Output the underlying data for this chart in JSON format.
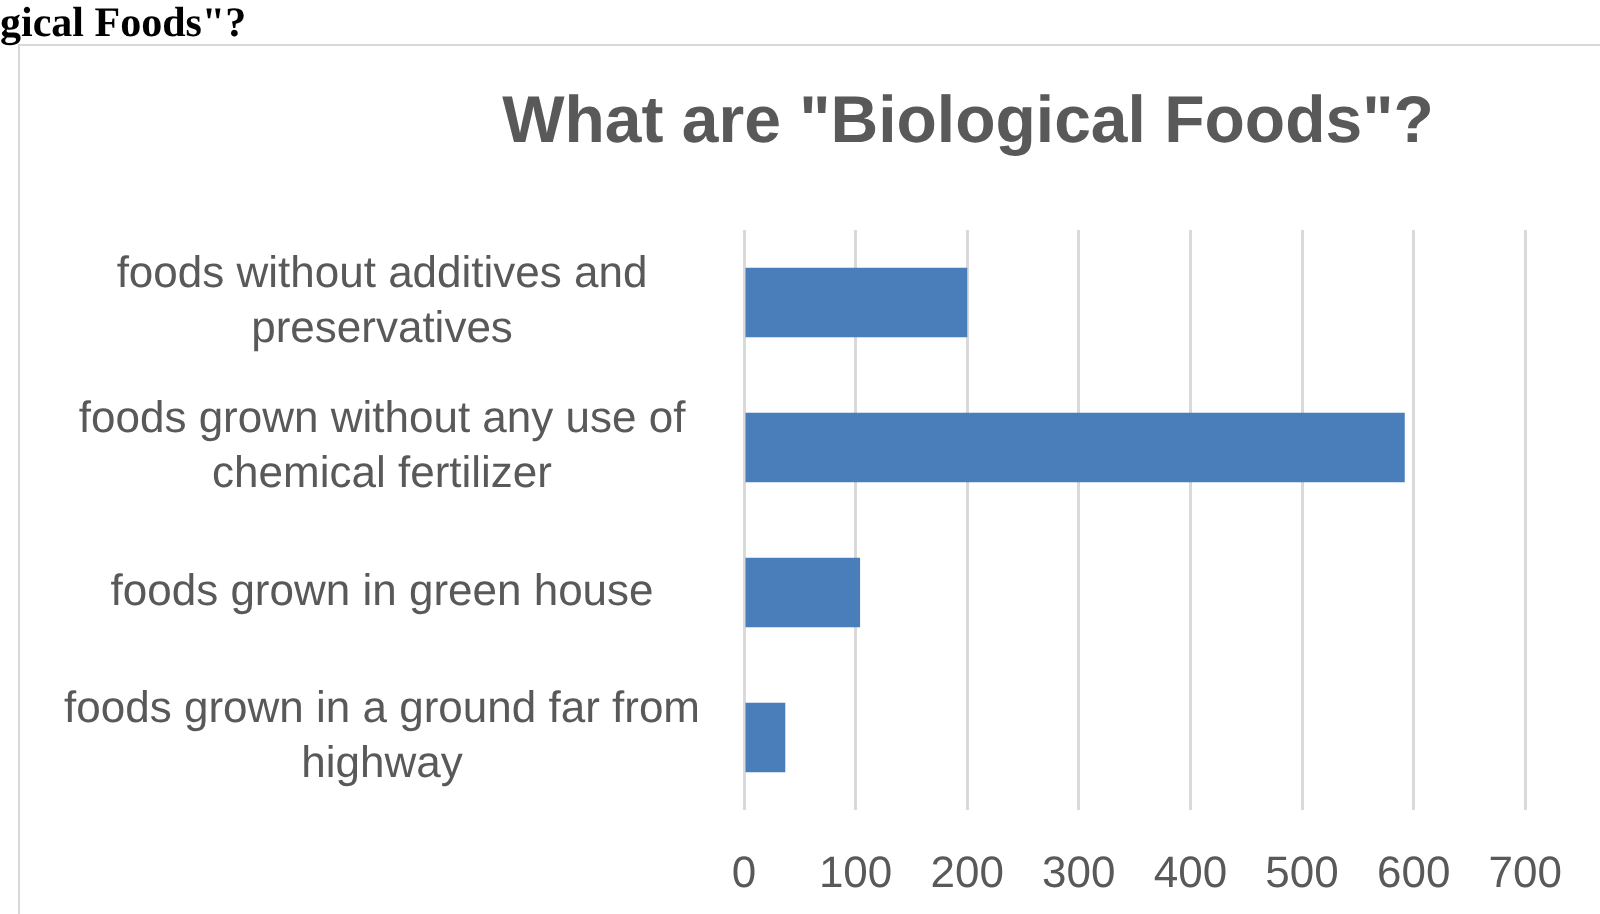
{
  "chart_data": {
    "type": "bar",
    "orientation": "horizontal",
    "title": "What are \"Biological Foods\"?",
    "annotations": [
      "gical Foods\"?"
    ],
    "categories": [
      "foods without additives and preservatives",
      "foods grown without any use of chemical fertilizer",
      "foods grown in green house",
      "foods grown in a ground far from highway"
    ],
    "values": [
      200,
      592,
      104,
      37
    ],
    "color": "#4a7ebb",
    "xlim": [
      0,
      700
    ],
    "xticks": [
      0,
      100,
      200,
      300,
      400,
      500,
      600,
      700
    ],
    "grid": "x"
  }
}
